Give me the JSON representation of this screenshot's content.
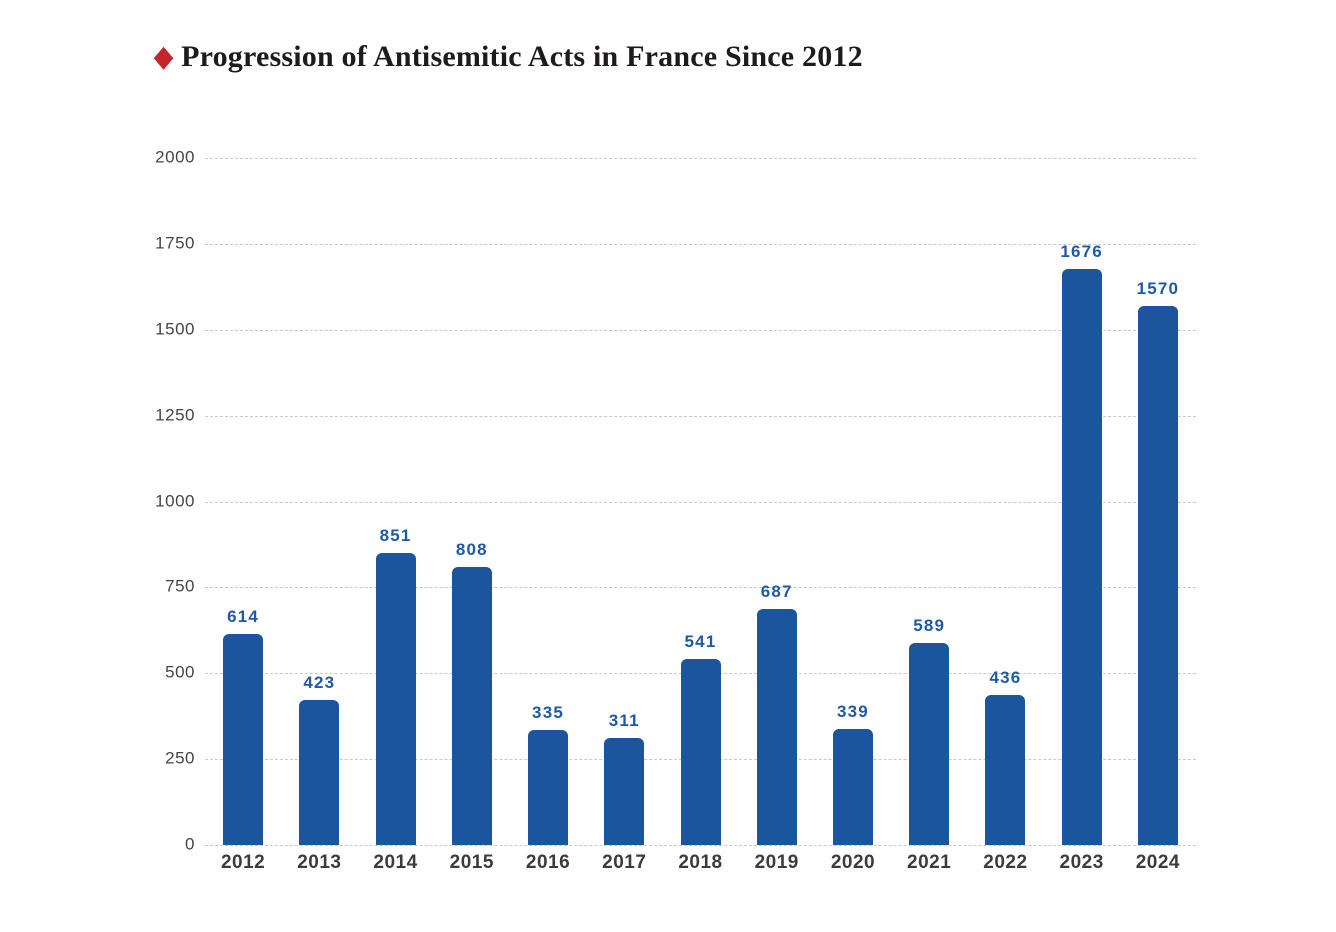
{
  "header": {
    "bullet_glyph": "◆",
    "title": "Progression of Antisemitic Acts in France Since 2012"
  },
  "colors": {
    "bar": "#1b559e",
    "value_label": "#1f5aa8",
    "axis_label": "#3c3c3c",
    "gridline": "#c9c9c9",
    "title": "#1d1b1b",
    "bullet": "#c5242b",
    "background": "#ffffff"
  },
  "chart_data": {
    "type": "bar",
    "title": "Progression of Antisemitic Acts in France Since 2012",
    "categories": [
      "2012",
      "2013",
      "2014",
      "2015",
      "2016",
      "2017",
      "2018",
      "2019",
      "2020",
      "2021",
      "2022",
      "2023",
      "2024"
    ],
    "values": [
      614,
      423,
      851,
      808,
      335,
      311,
      541,
      687,
      339,
      589,
      436,
      1676,
      1570
    ],
    "xlabel": "",
    "ylabel": "",
    "ylim": [
      0,
      2000
    ],
    "yticks": [
      0,
      250,
      500,
      750,
      1000,
      1250,
      1500,
      1750,
      2000
    ],
    "grid": "horizontal-dashed",
    "legend": "none",
    "bar_corner_radius": "rounded-top",
    "value_labels": "above-bars"
  }
}
